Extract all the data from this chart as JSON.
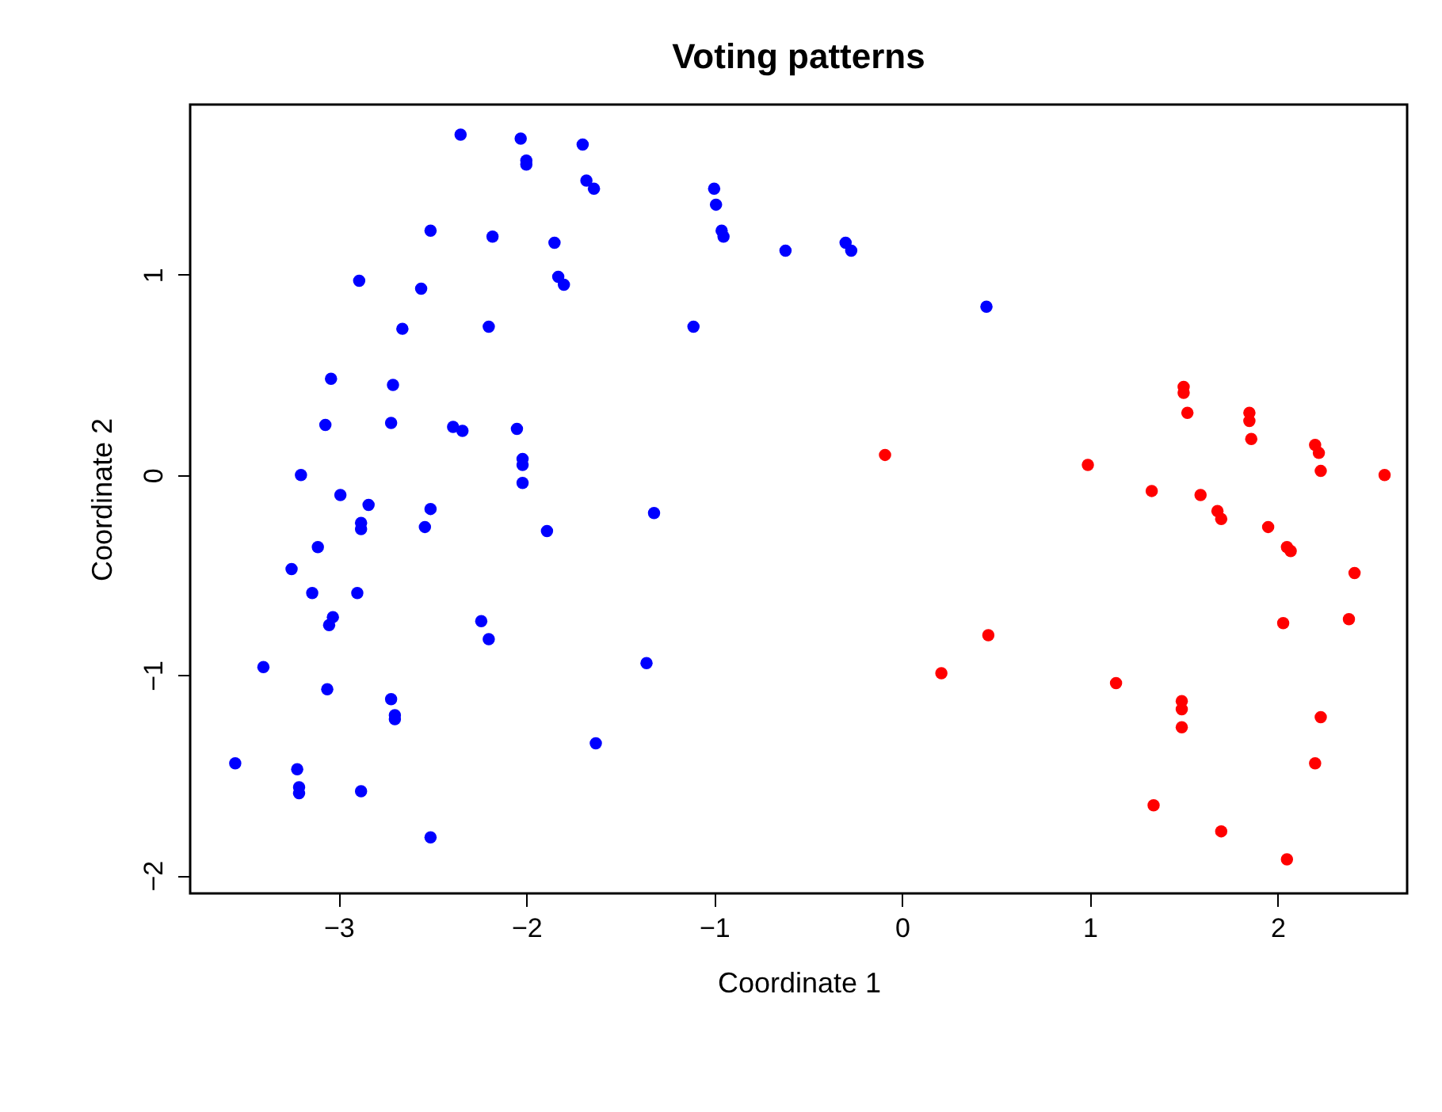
{
  "chart_data": {
    "type": "scatter",
    "title": "Voting patterns",
    "xlabel": "Coordinate 1",
    "ylabel": "Coordinate 2",
    "xlim": [
      -3.79,
      2.69
    ],
    "ylim": [
      -2.09,
      1.85
    ],
    "xticks": [
      -3,
      -2,
      -1,
      0,
      1,
      2
    ],
    "yticks": [
      -2,
      -1,
      0,
      1
    ],
    "grid": false,
    "legend": false,
    "marker": "circle",
    "series": [
      {
        "color": "#0000ff",
        "x": [
          -2.35,
          -2.03,
          -2.0,
          -2.0,
          -1.7,
          -1.68,
          -1.64,
          -1.0,
          -0.99,
          -0.96,
          -0.95,
          -0.62,
          -0.3,
          -0.27,
          0.45,
          -1.11,
          -2.51,
          -2.18,
          -1.85,
          -1.83,
          -1.8,
          -2.89,
          -2.56,
          -2.66,
          -2.2,
          -3.04,
          -2.71,
          -3.07,
          -2.72,
          -2.39,
          -2.34,
          -2.05,
          -2.02,
          -2.02,
          -2.02,
          -3.2,
          -2.99,
          -2.84,
          -2.88,
          -2.88,
          -2.51,
          -2.54,
          -1.89,
          -1.32,
          -3.11,
          -3.25,
          -3.14,
          -2.9,
          -3.03,
          -3.05,
          -2.24,
          -2.2,
          -3.4,
          -3.06,
          -2.72,
          -2.7,
          -2.7,
          -1.36,
          -3.55,
          -3.22,
          -3.21,
          -3.21,
          -2.88,
          -1.63,
          -2.51
        ],
        "values": [
          1.7,
          1.68,
          1.57,
          1.55,
          1.65,
          1.47,
          1.43,
          1.43,
          1.35,
          1.22,
          1.19,
          1.12,
          1.16,
          1.12,
          0.84,
          0.74,
          1.22,
          1.19,
          1.16,
          0.99,
          0.95,
          0.97,
          0.93,
          0.73,
          0.74,
          0.48,
          0.45,
          0.25,
          0.26,
          0.24,
          0.22,
          0.23,
          0.08,
          0.05,
          -0.04,
          0.0,
          -0.1,
          -0.15,
          -0.24,
          -0.27,
          -0.17,
          -0.26,
          -0.28,
          -0.19,
          -0.36,
          -0.47,
          -0.59,
          -0.59,
          -0.71,
          -0.75,
          -0.73,
          -0.82,
          -0.96,
          -1.07,
          -1.12,
          -1.22,
          -1.2,
          -0.94,
          -1.44,
          -1.47,
          -1.56,
          -1.59,
          -1.58,
          -1.34,
          -1.81
        ]
      },
      {
        "color": "#ff0000",
        "x": [
          -0.09,
          0.99,
          1.33,
          1.59,
          1.68,
          1.7,
          1.95,
          2.05,
          2.07,
          2.41,
          2.03,
          2.38,
          1.5,
          1.5,
          1.52,
          1.85,
          1.85,
          1.86,
          2.2,
          2.22,
          2.23,
          2.57,
          0.46,
          0.21,
          1.14,
          1.49,
          1.49,
          1.49,
          2.23,
          2.2,
          1.34,
          1.7,
          2.05
        ],
        "values": [
          0.1,
          0.05,
          -0.08,
          -0.1,
          -0.18,
          -0.22,
          -0.26,
          -0.36,
          -0.38,
          -0.49,
          -0.74,
          -0.72,
          0.41,
          0.44,
          0.31,
          0.31,
          0.27,
          0.18,
          0.15,
          0.11,
          0.02,
          0.0,
          -0.8,
          -0.99,
          -1.04,
          -1.13,
          -1.17,
          -1.26,
          -1.21,
          -1.44,
          -1.65,
          -1.78,
          -1.92
        ]
      }
    ]
  }
}
